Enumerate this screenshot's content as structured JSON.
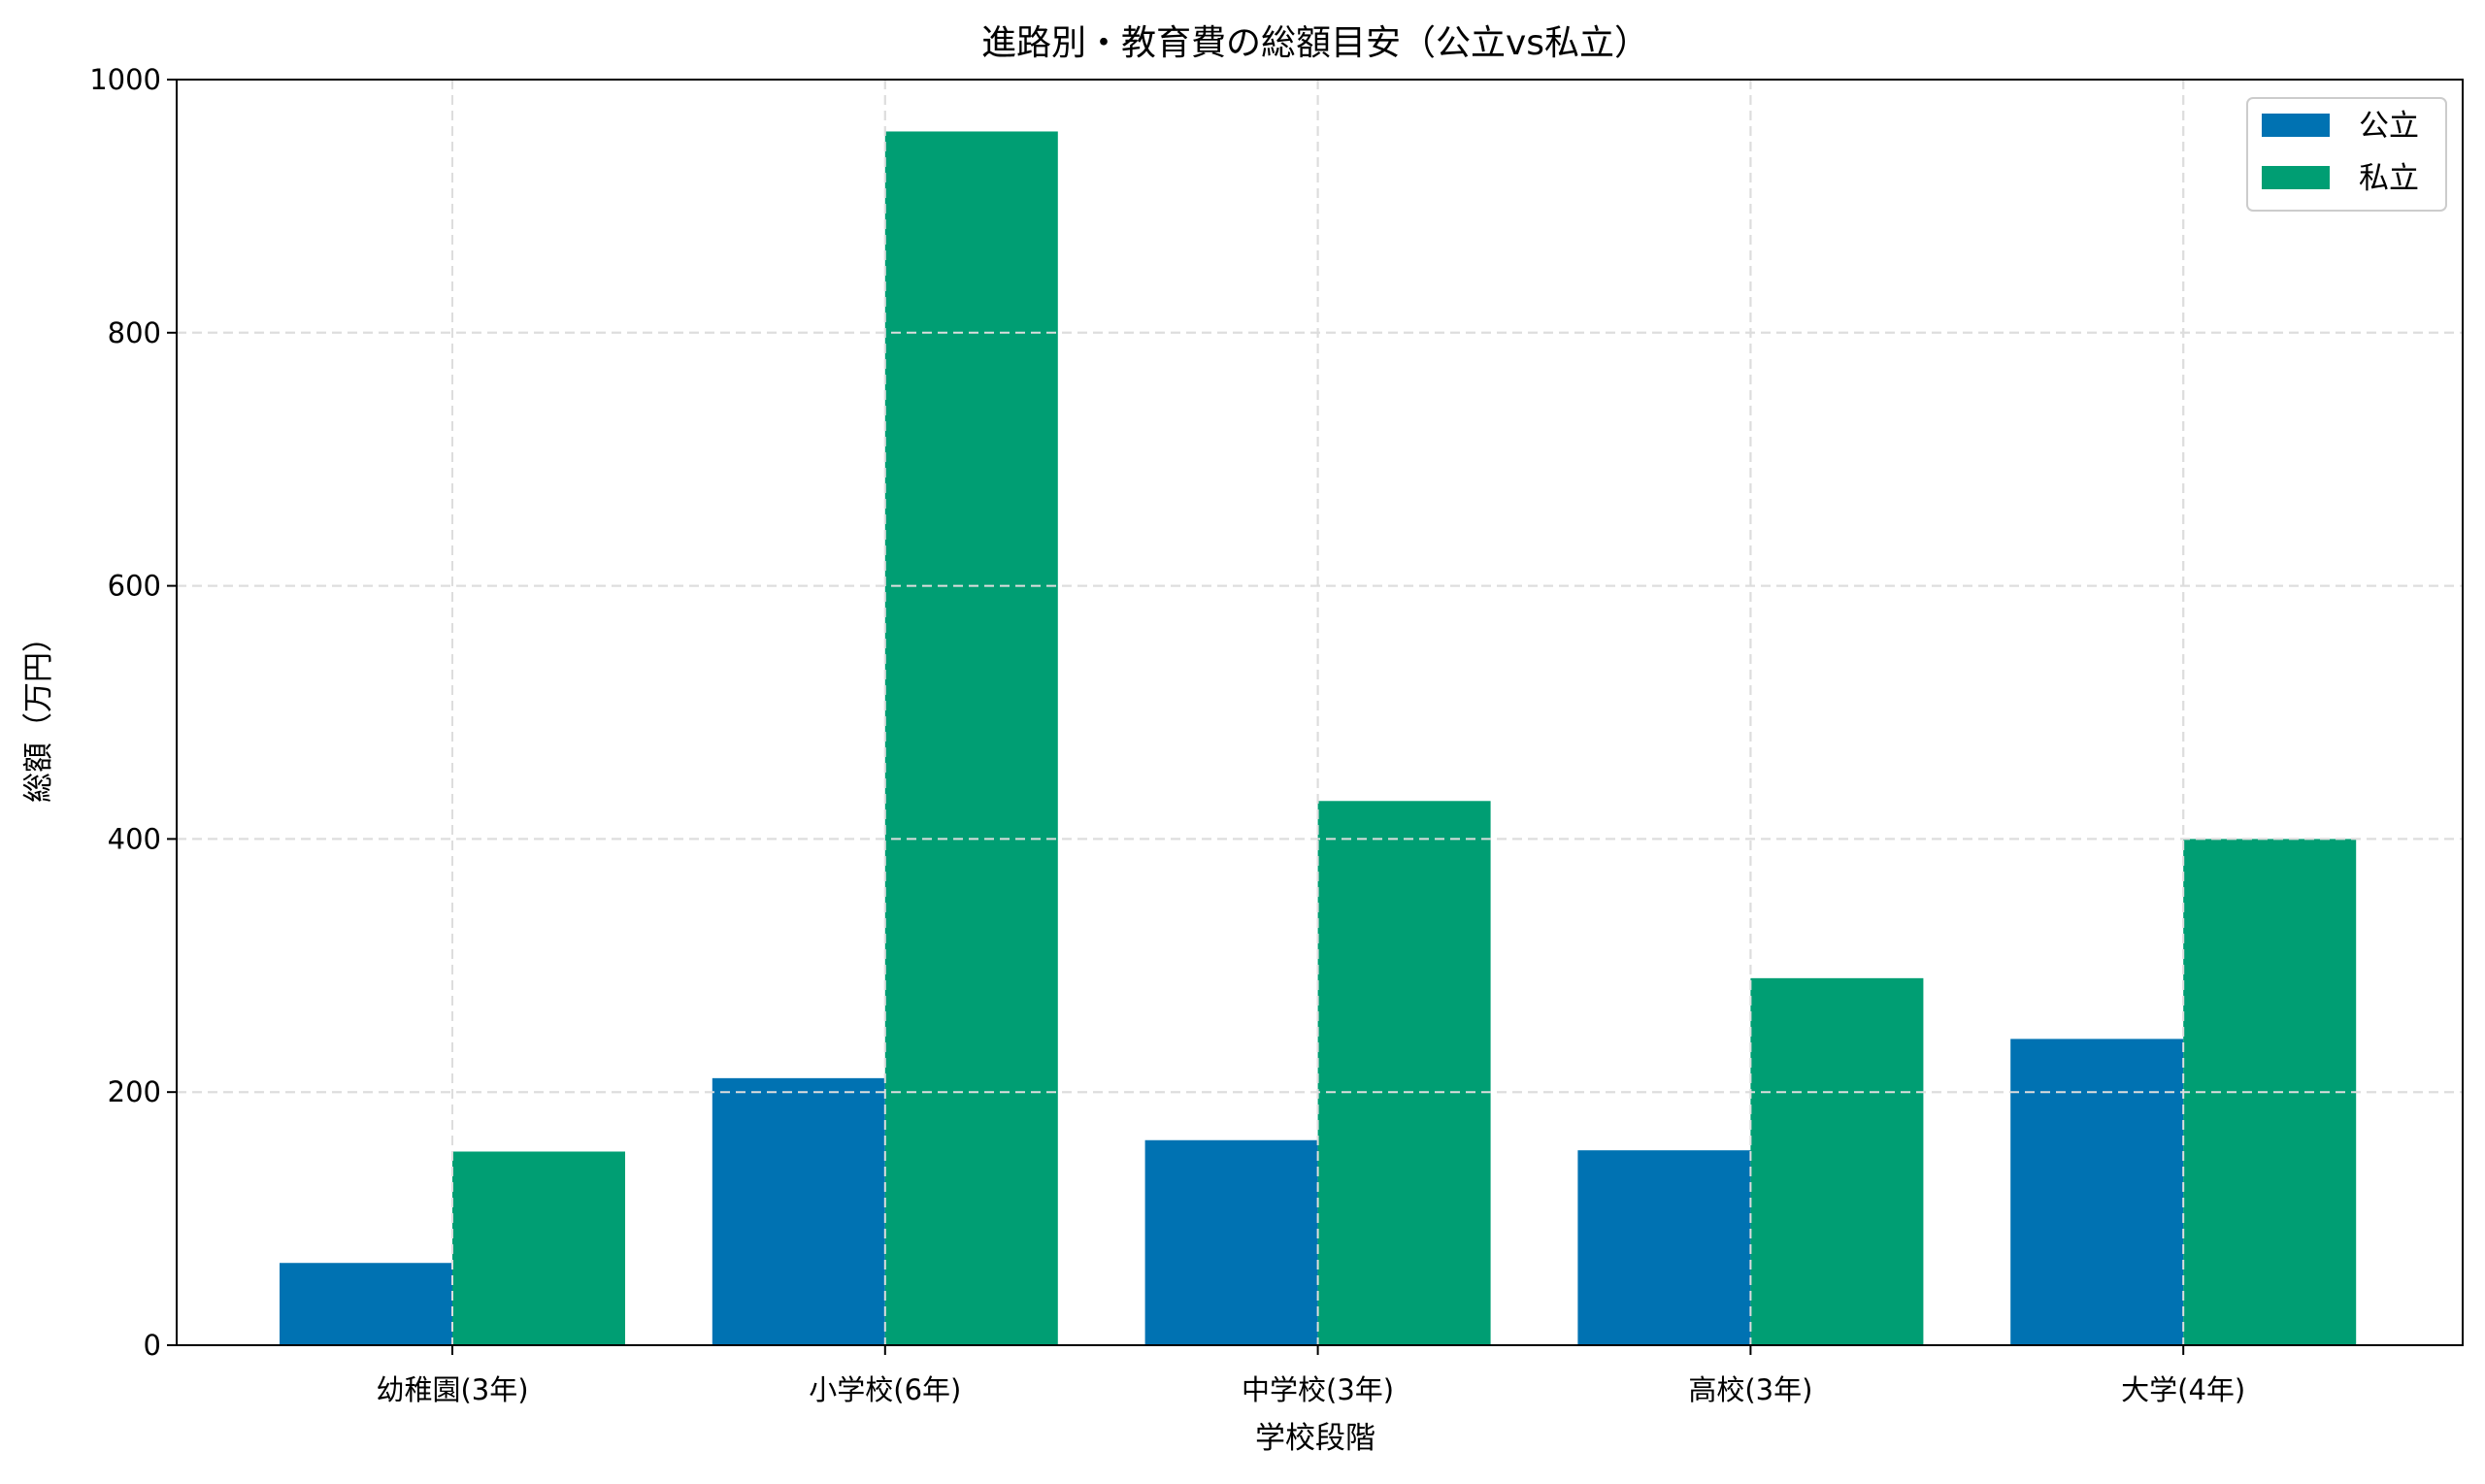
{
  "chart_data": {
    "type": "bar",
    "title": "進路別・教育費の総額目安（公立vs私立）",
    "xlabel": "学校段階",
    "ylabel": "総額（万円）",
    "categories": [
      "幼稚園(3年)",
      "小学校(6年)",
      "中学校(3年)",
      "高校(3年)",
      "大学(4年)"
    ],
    "series": [
      {
        "name": "公立",
        "color": "#0072b2",
        "values": [
          65,
          211,
          162,
          154,
          242
        ]
      },
      {
        "name": "私立",
        "color": "#009e73",
        "values": [
          153,
          959,
          430,
          290,
          400
        ]
      }
    ],
    "ylim": [
      0,
      1000
    ],
    "yticks": [
      0,
      200,
      400,
      600,
      800,
      1000
    ],
    "grid": true,
    "legend_position": "top-right"
  }
}
